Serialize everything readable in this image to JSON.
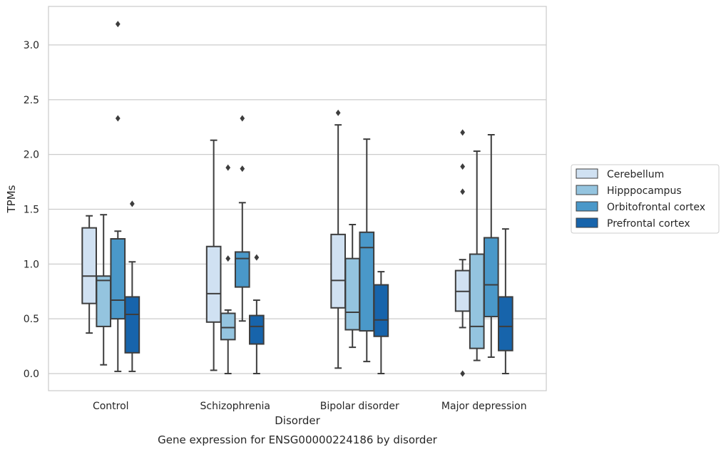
{
  "chart_data": {
    "type": "box",
    "title": "",
    "caption": "Gene expression for ENSG00000224186 by disorder",
    "xlabel": "Disorder",
    "ylabel": "TPMs",
    "ylim": [
      -0.15,
      3.35
    ],
    "yticks": [
      "0.0",
      "0.5",
      "1.0",
      "1.5",
      "2.0",
      "2.5",
      "3.0"
    ],
    "grid": "horizontal",
    "legend_position": "right",
    "categories": [
      "Control",
      "Schizophrenia",
      "Bipolar disorder",
      "Major depression"
    ],
    "series": [
      {
        "name": "Cerebellum",
        "color": "#d0e1f2",
        "boxes": [
          {
            "whislo": 0.37,
            "q1": 0.64,
            "med": 0.89,
            "q3": 1.33,
            "whishi": 1.44,
            "fliers": []
          },
          {
            "whislo": 0.03,
            "q1": 0.47,
            "med": 0.73,
            "q3": 1.16,
            "whishi": 2.13,
            "fliers": []
          },
          {
            "whislo": 0.05,
            "q1": 0.6,
            "med": 0.85,
            "q3": 1.27,
            "whishi": 2.27,
            "fliers": [
              2.38
            ]
          },
          {
            "whislo": 0.42,
            "q1": 0.57,
            "med": 0.75,
            "q3": 0.94,
            "whishi": 1.04,
            "fliers": [
              1.66,
              1.89,
              2.2,
              0.0
            ]
          }
        ]
      },
      {
        "name": "Hipppocampus",
        "color": "#94c4df",
        "boxes": [
          {
            "whislo": 0.08,
            "q1": 0.43,
            "med": 0.85,
            "q3": 0.89,
            "whishi": 1.45,
            "fliers": []
          },
          {
            "whislo": 0.0,
            "q1": 0.31,
            "med": 0.42,
            "q3": 0.55,
            "whishi": 0.58,
            "fliers": [
              1.05,
              1.88
            ]
          },
          {
            "whislo": 0.24,
            "q1": 0.4,
            "med": 0.56,
            "q3": 1.05,
            "whishi": 1.36,
            "fliers": []
          },
          {
            "whislo": 0.12,
            "q1": 0.23,
            "med": 0.43,
            "q3": 1.09,
            "whishi": 2.03,
            "fliers": []
          }
        ]
      },
      {
        "name": "Orbitofrontal cortex",
        "color": "#4a98c9",
        "boxes": [
          {
            "whislo": 0.02,
            "q1": 0.5,
            "med": 0.67,
            "q3": 1.23,
            "whishi": 1.3,
            "fliers": [
              2.33,
              3.19
            ]
          },
          {
            "whislo": 0.48,
            "q1": 0.79,
            "med": 1.05,
            "q3": 1.11,
            "whishi": 1.56,
            "fliers": [
              1.87,
              2.33
            ]
          },
          {
            "whislo": 0.11,
            "q1": 0.39,
            "med": 1.15,
            "q3": 1.29,
            "whishi": 2.14,
            "fliers": []
          },
          {
            "whislo": 0.15,
            "q1": 0.52,
            "med": 0.81,
            "q3": 1.24,
            "whishi": 2.18,
            "fliers": []
          }
        ]
      },
      {
        "name": "Prefrontal cortex",
        "color": "#1764ab",
        "boxes": [
          {
            "whislo": 0.02,
            "q1": 0.19,
            "med": 0.54,
            "q3": 0.7,
            "whishi": 1.02,
            "fliers": [
              1.55
            ]
          },
          {
            "whislo": 0.0,
            "q1": 0.27,
            "med": 0.43,
            "q3": 0.53,
            "whishi": 0.67,
            "fliers": [
              1.06
            ]
          },
          {
            "whislo": 0.0,
            "q1": 0.34,
            "med": 0.49,
            "q3": 0.81,
            "whishi": 0.93,
            "fliers": []
          },
          {
            "whislo": 0.0,
            "q1": 0.21,
            "med": 0.43,
            "q3": 0.7,
            "whishi": 1.32,
            "fliers": []
          }
        ]
      }
    ]
  }
}
